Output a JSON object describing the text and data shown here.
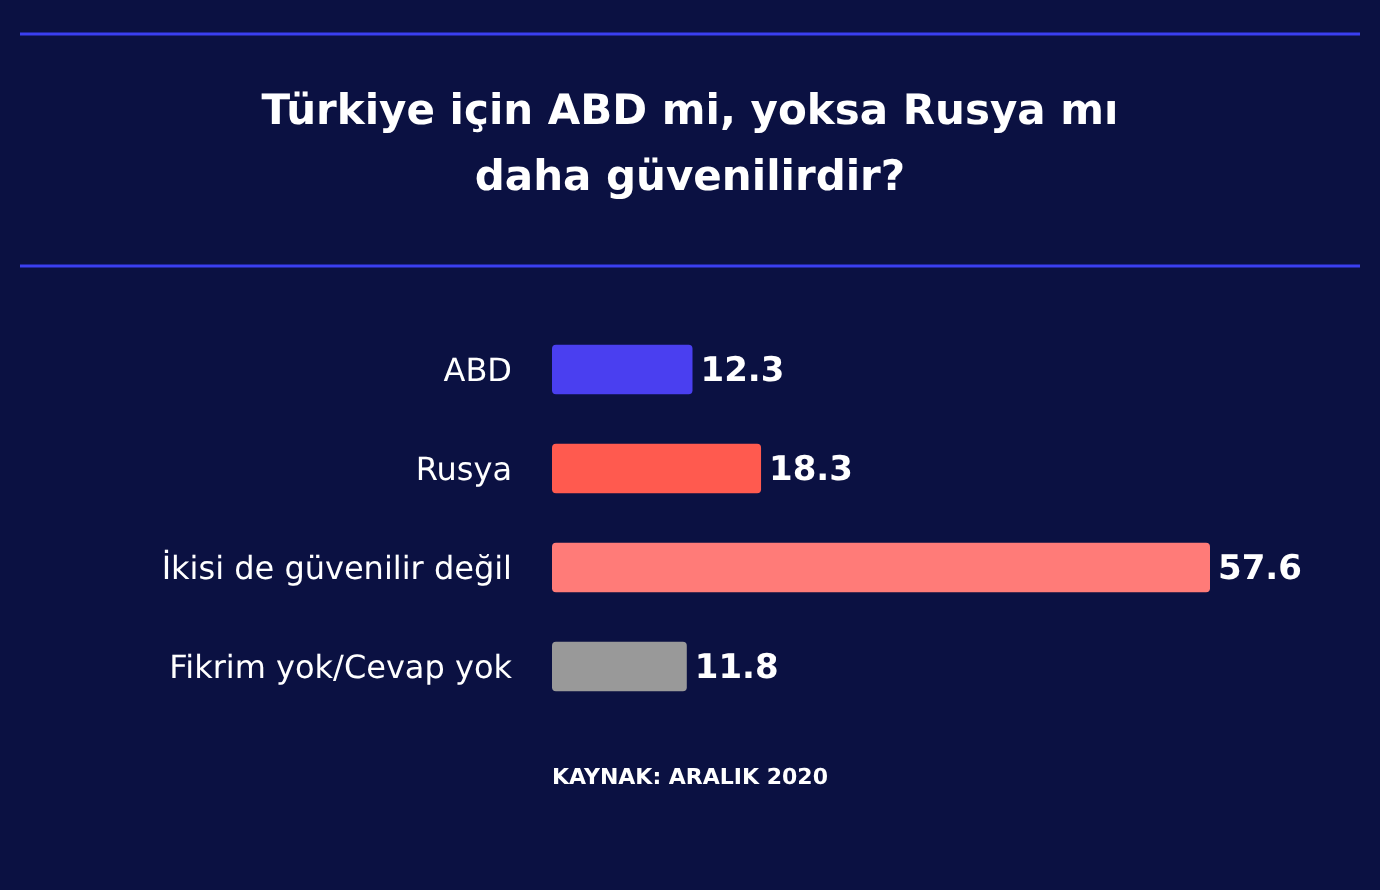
{
  "chart_data": {
    "type": "bar",
    "orientation": "horizontal",
    "title": "Türkiye için ABD mi, yoksa Rusya mı daha güvenilirdir?",
    "categories": [
      "ABD",
      "Rusya",
      "İkisi de güvenilir değil",
      "Fikrim yok/Cevap yok"
    ],
    "values": [
      12.3,
      18.3,
      57.6,
      11.8
    ],
    "colors": [
      "#4a3ff0",
      "#ff5a4f",
      "#ff7b78",
      "#999999"
    ],
    "data_labels": true,
    "annotations": [
      "KAYNAK: ARALIK 2020"
    ]
  }
}
